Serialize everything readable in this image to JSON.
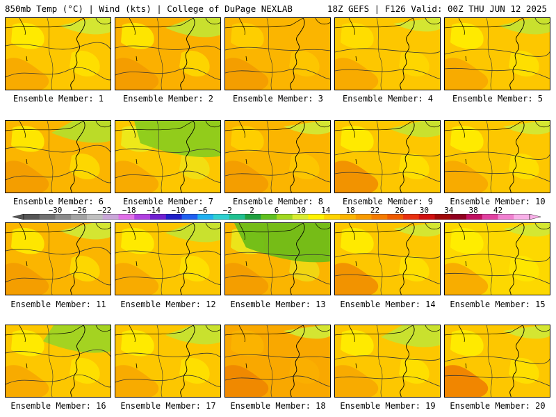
{
  "header": {
    "left": "850mb Temp (°C) | Wind (kts) | College of DuPage NEXLAB",
    "right": "18Z GEFS | F126 Valid: 00Z THU JUN 12 2025"
  },
  "members": [
    {
      "label": "Ensemble Member: 1",
      "bg": "#fdc700",
      "accent": "#fff200",
      "warm": "#f7a600",
      "cool": "#d2e835",
      "coolAmt": 0.2
    },
    {
      "label": "Ensemble Member: 2",
      "bg": "#fbb000",
      "accent": "#fff200",
      "warm": "#f29a00",
      "cool": "#c6e330",
      "coolAmt": 0.3
    },
    {
      "label": "Ensemble Member: 3",
      "bg": "#fbb500",
      "accent": "#ffd400",
      "warm": "#f29a00",
      "cool": "#d2e835",
      "coolAmt": 0.0
    },
    {
      "label": "Ensemble Member: 4",
      "bg": "#fdc700",
      "accent": "#ffe200",
      "warm": "#f7a600",
      "cool": "#d2e835",
      "coolAmt": 0.1
    },
    {
      "label": "Ensemble Member: 5",
      "bg": "#fdc700",
      "accent": "#fff200",
      "warm": "#f7a600",
      "cool": "#c6e330",
      "coolAmt": 0.2
    },
    {
      "label": "Ensemble Member: 6",
      "bg": "#fbb500",
      "accent": "#fff200",
      "warm": "#f29a00",
      "cool": "#b7dd2a",
      "coolAmt": 0.4
    },
    {
      "label": "Ensemble Member: 7",
      "bg": "#fdc700",
      "accent": "#e9f020",
      "warm": "#f7a600",
      "cool": "#8ccc1c",
      "coolAmt": 0.9
    },
    {
      "label": "Ensemble Member: 8",
      "bg": "#fbb500",
      "accent": "#ffd400",
      "warm": "#f29a00",
      "cool": "#d2e835",
      "coolAmt": 0.1
    },
    {
      "label": "Ensemble Member: 9",
      "bg": "#fdc700",
      "accent": "#fff200",
      "warm": "#f08a00",
      "cool": "#c6e330",
      "coolAmt": 0.2
    },
    {
      "label": "Ensemble Member: 10",
      "bg": "#fdc700",
      "accent": "#fff200",
      "warm": "#f7a600",
      "cool": "#d2e835",
      "coolAmt": 0.1
    },
    {
      "label": "Ensemble Member: 11",
      "bg": "#fbb500",
      "accent": "#fff200",
      "warm": "#f29a00",
      "cool": "#d2e835",
      "coolAmt": 0.2
    },
    {
      "label": "Ensemble Member: 12",
      "bg": "#fdc700",
      "accent": "#fff200",
      "warm": "#f7a600",
      "cool": "#c6e330",
      "coolAmt": 0.3
    },
    {
      "label": "Ensemble Member: 13",
      "bg": "#fbb500",
      "accent": "#e9f020",
      "warm": "#f29a00",
      "cool": "#6fbd18",
      "coolAmt": 1.0
    },
    {
      "label": "Ensemble Member: 14",
      "bg": "#fdc700",
      "accent": "#fff200",
      "warm": "#f08a00",
      "cool": "#d2e835",
      "coolAmt": 0.1
    },
    {
      "label": "Ensemble Member: 15",
      "bg": "#fdd800",
      "accent": "#fff200",
      "warm": "#f7a600",
      "cool": "#d2e835",
      "coolAmt": 0.1
    },
    {
      "label": "Ensemble Member: 16",
      "bg": "#fdc700",
      "accent": "#fff200",
      "warm": "#f7a600",
      "cool": "#9fd423",
      "coolAmt": 0.6
    },
    {
      "label": "Ensemble Member: 17",
      "bg": "#fdc700",
      "accent": "#fff200",
      "warm": "#f7a600",
      "cool": "#c6e330",
      "coolAmt": 0.3
    },
    {
      "label": "Ensemble Member: 18",
      "bg": "#f9a800",
      "accent": "#fbb500",
      "warm": "#ee8400",
      "cool": "#d2e835",
      "coolAmt": 0.1
    },
    {
      "label": "Ensemble Member: 19",
      "bg": "#fdc700",
      "accent": "#fff200",
      "warm": "#f7a600",
      "cool": "#c6e330",
      "coolAmt": 0.4
    },
    {
      "label": "Ensemble Member: 20",
      "bg": "#fdc700",
      "accent": "#fff200",
      "warm": "#ee7a00",
      "cool": "#d2e835",
      "coolAmt": 0.1
    }
  ],
  "colorbar": {
    "labels": [
      "−30",
      "−26",
      "−22",
      "−18",
      "−14",
      "−10",
      "−6",
      "−2",
      "2",
      "6",
      "10",
      "14",
      "18",
      "22",
      "26",
      "30",
      "34",
      "38",
      "42"
    ],
    "colors": [
      "#555555",
      "#707070",
      "#8a8a8a",
      "#a3a3a3",
      "#bfbfbf",
      "#c9a6d8",
      "#e070e8",
      "#b040e0",
      "#7020d0",
      "#2020c8",
      "#2060f0",
      "#20b0f0",
      "#30d0d0",
      "#20c090",
      "#20a040",
      "#60c020",
      "#a0d820",
      "#d8ec30",
      "#fff200",
      "#ffd400",
      "#fbb500",
      "#f79a00",
      "#f47a00",
      "#ee5a00",
      "#e83010",
      "#d01010",
      "#a00808",
      "#900020",
      "#c01060",
      "#e040a0",
      "#f080d0",
      "#f8b0e8"
    ]
  }
}
